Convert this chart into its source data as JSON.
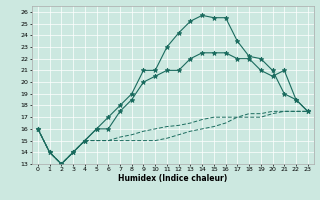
{
  "xlabel": "Humidex (Indice chaleur)",
  "background_color": "#cce8e0",
  "line_color": "#1a6b5e",
  "xlim": [
    -0.5,
    23.5
  ],
  "ylim": [
    13,
    26.5
  ],
  "xticks": [
    0,
    1,
    2,
    3,
    4,
    5,
    6,
    7,
    8,
    9,
    10,
    11,
    12,
    13,
    14,
    15,
    16,
    17,
    18,
    19,
    20,
    21,
    22,
    23
  ],
  "yticks": [
    13,
    14,
    15,
    16,
    17,
    18,
    19,
    20,
    21,
    22,
    23,
    24,
    25,
    26
  ],
  "lines": [
    {
      "x": [
        0,
        1,
        2,
        3,
        4,
        5,
        6,
        7,
        8,
        9,
        10,
        11,
        12,
        13,
        14,
        15,
        16,
        17,
        18,
        19,
        20,
        21,
        22,
        23
      ],
      "y": [
        16,
        14,
        13,
        14,
        15,
        16,
        17,
        18,
        19,
        21,
        21,
        23,
        24.2,
        25.2,
        25.7,
        25.5,
        25.5,
        23.5,
        22.2,
        22,
        21,
        19,
        18.5,
        17.5
      ],
      "style": "-",
      "marker": "*",
      "markersize": 3.5
    },
    {
      "x": [
        0,
        1,
        2,
        3,
        4,
        5,
        6,
        7,
        8,
        9,
        10,
        11,
        12,
        13,
        14,
        15,
        16,
        17,
        18,
        19,
        20,
        21,
        22,
        23
      ],
      "y": [
        16,
        14,
        13,
        14,
        15,
        16,
        16,
        17.5,
        18.5,
        20,
        20.5,
        21,
        21,
        22,
        22.5,
        22.5,
        22.5,
        22,
        22,
        21,
        20.5,
        21,
        18.5,
        17.5
      ],
      "style": "-",
      "marker": "*",
      "markersize": 3.5
    },
    {
      "x": [
        0,
        1,
        2,
        3,
        4,
        5,
        6,
        7,
        8,
        9,
        10,
        11,
        12,
        13,
        14,
        15,
        16,
        17,
        18,
        19,
        20,
        21,
        22,
        23
      ],
      "y": [
        16,
        14,
        13,
        14,
        15,
        15,
        15,
        15,
        15,
        15,
        15,
        15.2,
        15.5,
        15.8,
        16,
        16.2,
        16.5,
        17,
        17,
        17,
        17.3,
        17.5,
        17.5,
        17.5
      ],
      "style": "--",
      "marker": null,
      "dashes": [
        4,
        2
      ]
    },
    {
      "x": [
        0,
        1,
        2,
        3,
        4,
        5,
        6,
        7,
        8,
        9,
        10,
        11,
        12,
        13,
        14,
        15,
        16,
        17,
        18,
        19,
        20,
        21,
        22,
        23
      ],
      "y": [
        16,
        14,
        13,
        14,
        15,
        15,
        15,
        15.3,
        15.5,
        15.8,
        16,
        16.2,
        16.3,
        16.5,
        16.8,
        17,
        17,
        17,
        17.3,
        17.3,
        17.5,
        17.5,
        17.5,
        17.5
      ],
      "style": "--",
      "marker": null,
      "dashes": [
        4,
        2
      ]
    }
  ]
}
